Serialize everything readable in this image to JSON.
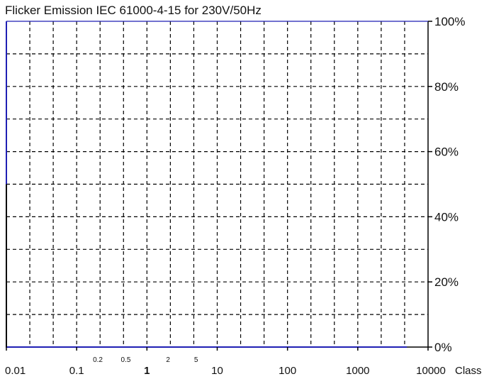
{
  "chart_data": {
    "type": "line",
    "title": "Flicker Emission IEC 61000-4-15  for 230V/50Hz",
    "xscale": "log",
    "xlim": [
      0.01,
      10000
    ],
    "ylim": [
      0,
      100
    ],
    "yunit": "%",
    "xlabel": "Class",
    "grid": true,
    "y_ticks": [
      "0%",
      "20%",
      "40%",
      "60%",
      "80%",
      "100%"
    ],
    "x_ticks_major": [
      {
        "value": 0.01,
        "label": "0.01"
      },
      {
        "value": 0.1,
        "label": "0.1"
      },
      {
        "value": 1,
        "label": "1"
      },
      {
        "value": 10,
        "label": "10"
      },
      {
        "value": 100,
        "label": "100"
      },
      {
        "value": 1000,
        "label": "1000"
      },
      {
        "value": 10000,
        "label": "10000"
      }
    ],
    "x_ticks_minor": [
      {
        "value": 0.2,
        "label": "0.2"
      },
      {
        "value": 0.5,
        "label": "0.5"
      },
      {
        "value": 2,
        "label": "2"
      },
      {
        "value": 5,
        "label": "5"
      }
    ],
    "series": [
      {
        "color": "#1f1fb4",
        "x": [
          0.01,
          0.01,
          5000
        ],
        "y": [
          100,
          0,
          0
        ]
      },
      {
        "color": "#000000",
        "x": [
          0.01,
          0.01
        ],
        "y": [
          0,
          50
        ]
      }
    ]
  }
}
